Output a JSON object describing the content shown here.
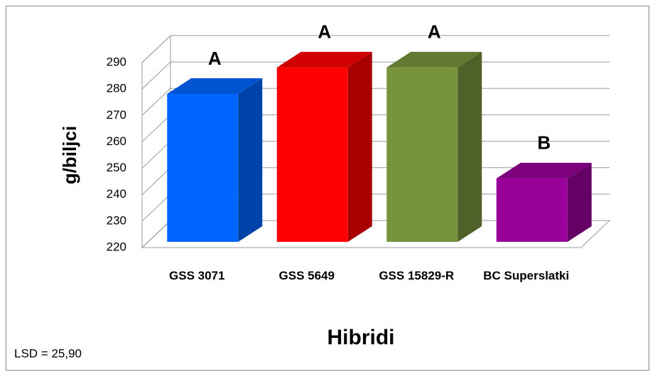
{
  "chart_data": {
    "type": "bar3d",
    "y_axis_label": "g/biljci",
    "x_axis_label": "Hibridi",
    "note": "LSD = 25,90",
    "categories": [
      "GSS 3071",
      "GSS 5649",
      "GSS 15829-R",
      "BC Superslatki"
    ],
    "values": [
      276,
      286,
      286,
      244
    ],
    "significance_labels": [
      "A",
      "A",
      "A",
      "B"
    ],
    "colors": [
      "#0066ff",
      "#ff0000",
      "#77933c",
      "#990099"
    ],
    "ylim": [
      220,
      290
    ],
    "yticks": [
      220,
      230,
      240,
      250,
      260,
      270,
      280,
      290
    ],
    "grid": true
  }
}
